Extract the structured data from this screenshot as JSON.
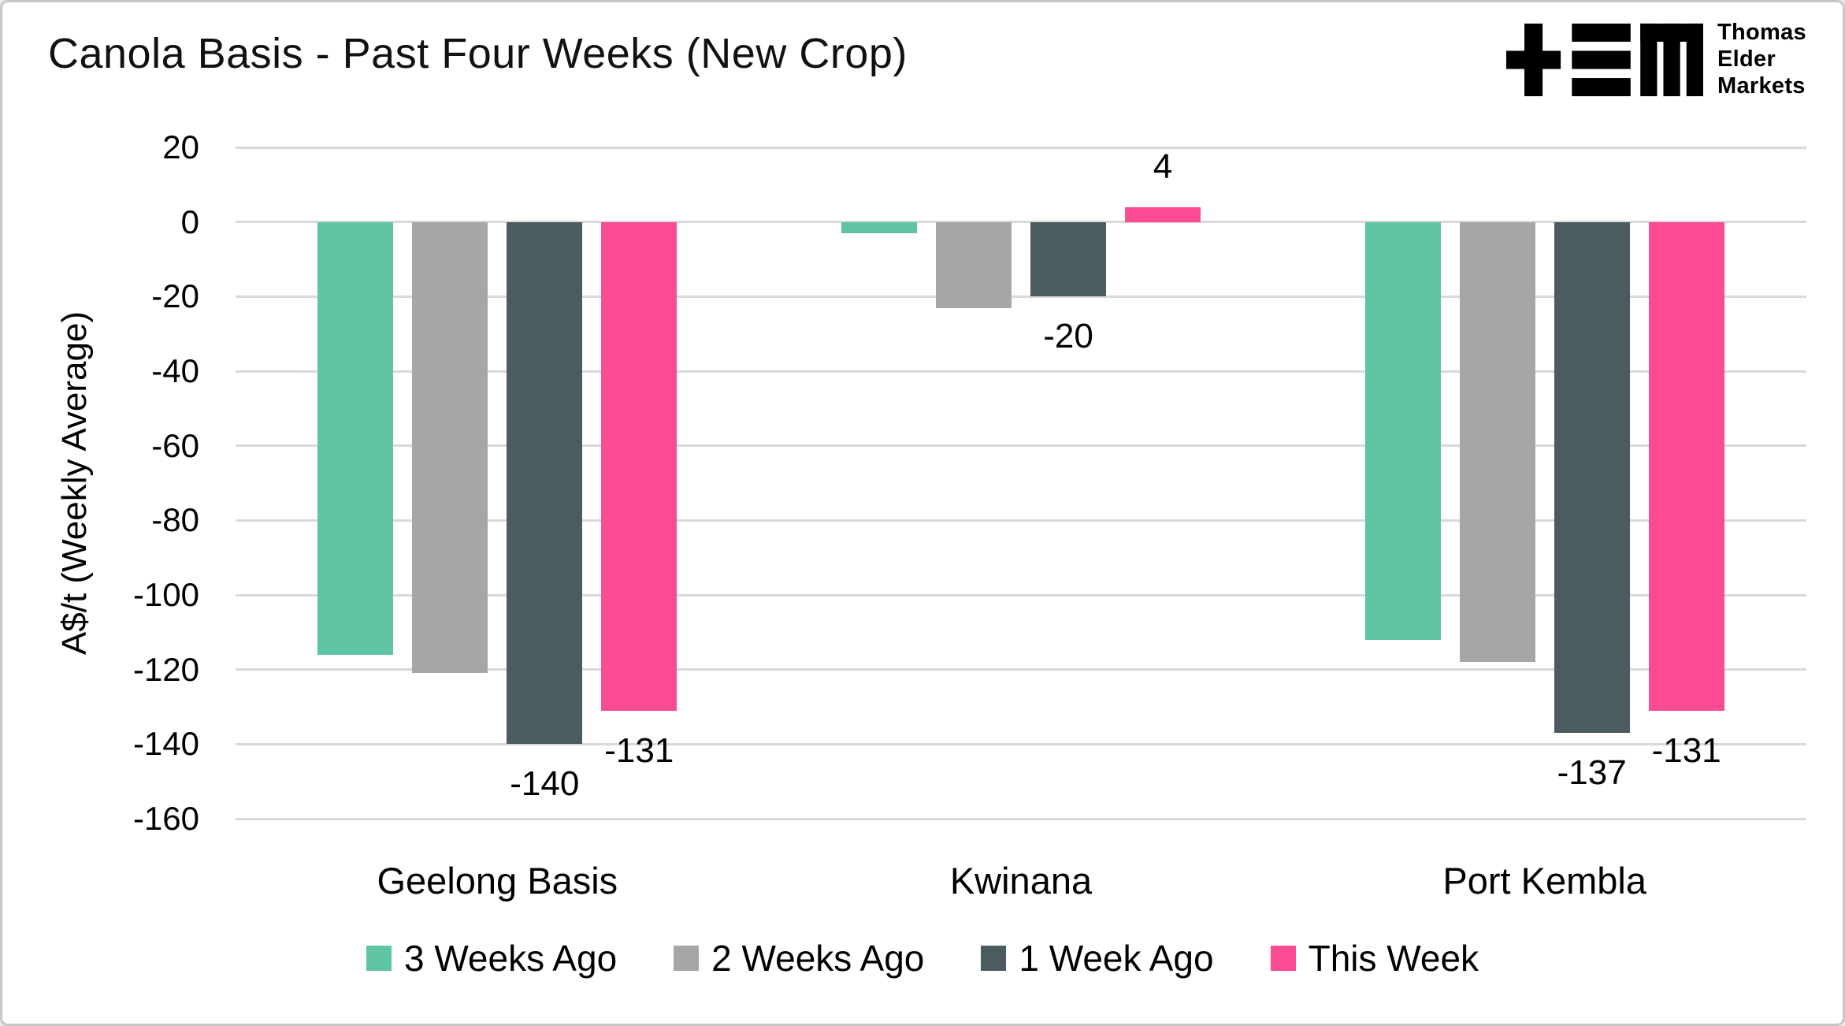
{
  "header": {
    "title": "Canola Basis - Past Four Weeks (New Crop)",
    "logo": {
      "glyph": "tem-plus-e-m-logo",
      "lines": [
        "Thomas",
        "Elder",
        "Markets"
      ]
    }
  },
  "chart_data": {
    "type": "bar",
    "title": "Canola Basis - Past Four Weeks (New Crop)",
    "xlabel": "",
    "ylabel": "A$/t (Weekly Average)",
    "categories": [
      "Geelong Basis",
      "Kwinana",
      "Port Kembla"
    ],
    "series": [
      {
        "name": "3 Weeks Ago",
        "color": "#5EC4A2",
        "values": [
          -116,
          -3,
          -112
        ],
        "data_labels": [
          null,
          null,
          null
        ]
      },
      {
        "name": "2 Weeks Ago",
        "color": "#A6A6A6",
        "values": [
          -121,
          -23,
          -118
        ],
        "data_labels": [
          null,
          null,
          null
        ]
      },
      {
        "name": "1 Week Ago",
        "color": "#4A5C5F",
        "values": [
          -140,
          -20,
          -137
        ],
        "data_labels": [
          "-140",
          "-20",
          "-137"
        ]
      },
      {
        "name": "This Week",
        "color": "#FD4B93",
        "values": [
          -131,
          4,
          -131
        ],
        "data_labels": [
          "-131",
          "4",
          "-131"
        ]
      }
    ],
    "ylim": [
      -160,
      20
    ],
    "yticks": [
      20,
      0,
      -20,
      -40,
      -60,
      -80,
      -100,
      -120,
      -140,
      -160
    ],
    "grid": true,
    "legend_position": "bottom",
    "gridline_color": "#d9d9d9"
  }
}
